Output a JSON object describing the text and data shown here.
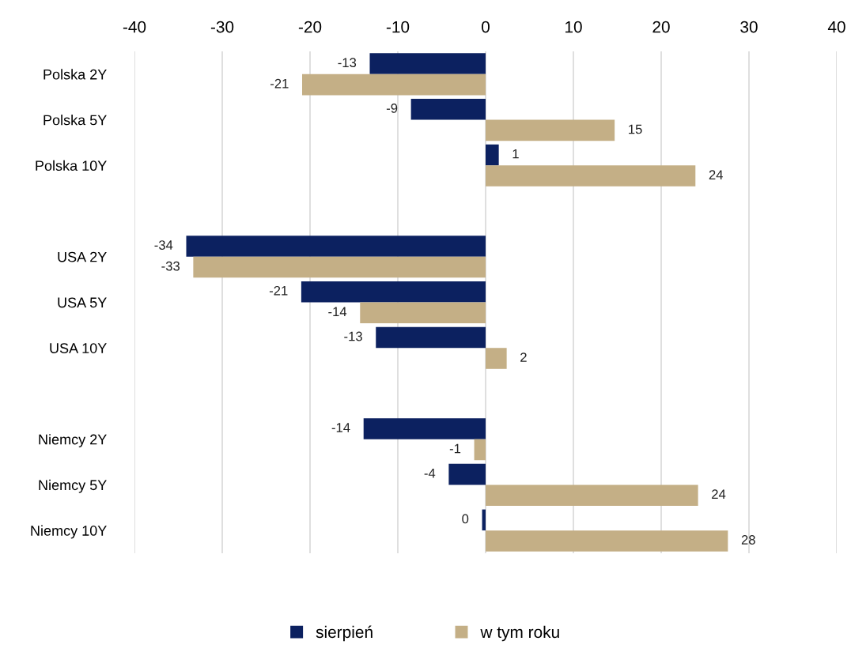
{
  "chart_data": {
    "type": "bar",
    "orientation": "horizontal",
    "categories": [
      "Polska 2Y",
      "Polska 5Y",
      "Polska 10Y",
      null,
      "USA 2Y",
      "USA 5Y",
      "USA 10Y",
      null,
      "Niemcy 2Y",
      "Niemcy 5Y",
      "Niemcy 10Y"
    ],
    "series": [
      {
        "name": "sierpień",
        "color": "#0c2160",
        "values": [
          -13.2,
          -8.5,
          1.5,
          null,
          -34.1,
          -21.0,
          -12.5,
          null,
          -13.9,
          -4.2,
          -0.4
        ],
        "value_labels": [
          "-13",
          "-9",
          "1",
          null,
          "-34",
          "-21",
          "-13",
          null,
          "-14",
          "-4",
          "0"
        ]
      },
      {
        "name": "w tym roku",
        "color": "#c4af86",
        "values": [
          -20.9,
          14.7,
          23.9,
          null,
          -33.3,
          -14.3,
          2.4,
          null,
          -1.3,
          24.2,
          27.6
        ],
        "value_labels": [
          "-21",
          "15",
          "24",
          null,
          "-33",
          "-14",
          "2",
          null,
          "-1",
          "24",
          "28"
        ]
      }
    ],
    "xlim": [
      -40,
      40
    ],
    "xticks": [
      {
        "value": -40,
        "label": "-40"
      },
      {
        "value": -30,
        "label": "-30"
      },
      {
        "value": -20,
        "label": "-20"
      },
      {
        "value": -10,
        "label": "-10"
      },
      0,
      10,
      20,
      30,
      40
    ],
    "grid": "x",
    "legend": "bottom"
  }
}
